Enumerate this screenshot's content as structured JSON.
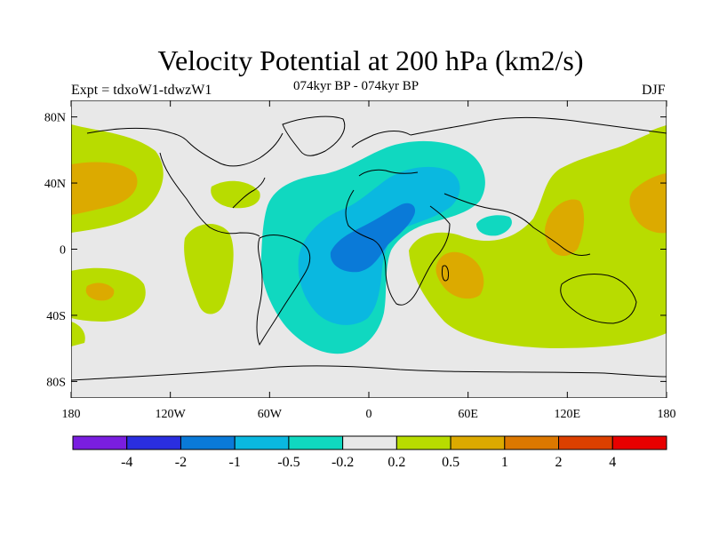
{
  "header": {
    "title": "Velocity Potential at 200 hPa (km2/s)",
    "experiment": "Expt = tdxoW1-tdwzW1",
    "period": "074kyr BP - 074kyr BP",
    "season": "DJF"
  },
  "map": {
    "lon_range": [
      -180,
      180
    ],
    "lat_range": [
      -90,
      90
    ],
    "lat_ticks": [
      {
        "value": 80,
        "label": "80N"
      },
      {
        "value": 40,
        "label": "40N"
      },
      {
        "value": 0,
        "label": "0"
      },
      {
        "value": -40,
        "label": "40S"
      },
      {
        "value": -80,
        "label": "80S"
      }
    ],
    "lon_ticks": [
      {
        "value": -180,
        "label": "180"
      },
      {
        "value": -120,
        "label": "120W"
      },
      {
        "value": -60,
        "label": "60W"
      },
      {
        "value": 0,
        "label": "0"
      },
      {
        "value": 60,
        "label": "60E"
      },
      {
        "value": 120,
        "label": "120E"
      },
      {
        "value": 180,
        "label": "180"
      }
    ],
    "background_color": "#e8e8e8"
  },
  "colorbar": {
    "colors": [
      "#7a1ee0",
      "#2a2ee0",
      "#0a7ad8",
      "#0ab8e0",
      "#10d8c0",
      "#e8e8e8",
      "#b8dc00",
      "#dcaa00",
      "#dc7800",
      "#dc4000",
      "#e80000"
    ],
    "labels": [
      "-4",
      "-2",
      "-1",
      "-0.5",
      "-0.2",
      "0.2",
      "0.5",
      "1",
      "2",
      "4"
    ]
  }
}
